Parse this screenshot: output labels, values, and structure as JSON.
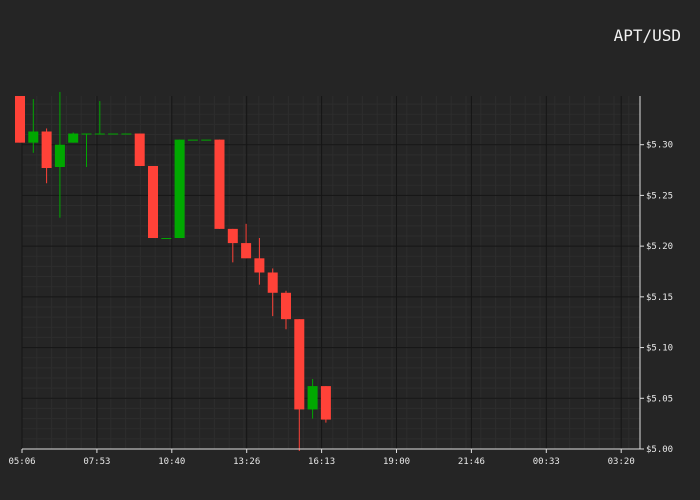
{
  "chart_data": {
    "type": "candlestick",
    "title": "APT/USD",
    "xlabel": "",
    "ylabel": "",
    "x_tick_labels": [
      "05:06",
      "07:53",
      "10:40",
      "13:26",
      "16:13",
      "19:00",
      "21:46",
      "00:33",
      "03:20"
    ],
    "y_ticks": [
      5.0,
      5.05,
      5.1,
      5.15,
      5.2,
      5.25,
      5.3
    ],
    "y_tick_labels": [
      "$5.00",
      "$5.05",
      "$5.10",
      "$5.15",
      "$5.20",
      "$5.25",
      "$5.30"
    ],
    "ylim": [
      5.0,
      5.348
    ],
    "grid": true,
    "up_color": "#00a800",
    "down_color": "#ff4238",
    "candles": [
      {
        "open": 5.348,
        "high": 5.348,
        "low": 5.302,
        "close": 5.302
      },
      {
        "open": 5.302,
        "high": 5.345,
        "low": 5.292,
        "close": 5.313
      },
      {
        "open": 5.313,
        "high": 5.316,
        "low": 5.262,
        "close": 5.277
      },
      {
        "open": 5.278,
        "high": 5.352,
        "low": 5.228,
        "close": 5.3
      },
      {
        "open": 5.302,
        "high": 5.312,
        "low": 5.302,
        "close": 5.311
      },
      {
        "open": 5.311,
        "high": 5.311,
        "low": 5.278,
        "close": 5.311
      },
      {
        "open": 5.311,
        "high": 5.343,
        "low": 5.311,
        "close": 5.311
      },
      {
        "open": 5.311,
        "high": 5.311,
        "low": 5.311,
        "close": 5.311
      },
      {
        "open": 5.311,
        "high": 5.311,
        "low": 5.311,
        "close": 5.311
      },
      {
        "open": 5.311,
        "high": 5.311,
        "low": 5.279,
        "close": 5.279
      },
      {
        "open": 5.279,
        "high": 5.279,
        "low": 5.208,
        "close": 5.208
      },
      {
        "open": 5.208,
        "high": 5.208,
        "low": 5.208,
        "close": 5.208
      },
      {
        "open": 5.208,
        "high": 5.305,
        "low": 5.208,
        "close": 5.305
      },
      {
        "open": 5.305,
        "high": 5.305,
        "low": 5.305,
        "close": 5.305
      },
      {
        "open": 5.305,
        "high": 5.305,
        "low": 5.305,
        "close": 5.305
      },
      {
        "open": 5.305,
        "high": 5.305,
        "low": 5.217,
        "close": 5.217
      },
      {
        "open": 5.217,
        "high": 5.217,
        "low": 5.184,
        "close": 5.203
      },
      {
        "open": 5.203,
        "high": 5.222,
        "low": 5.188,
        "close": 5.188
      },
      {
        "open": 5.188,
        "high": 5.208,
        "low": 5.162,
        "close": 5.174
      },
      {
        "open": 5.174,
        "high": 5.178,
        "low": 5.131,
        "close": 5.154
      },
      {
        "open": 5.154,
        "high": 5.156,
        "low": 5.118,
        "close": 5.128
      },
      {
        "open": 5.128,
        "high": 5.128,
        "low": 4.998,
        "close": 5.039
      },
      {
        "open": 5.039,
        "high": 5.069,
        "low": 5.03,
        "close": 5.062
      },
      {
        "open": 5.062,
        "high": 5.062,
        "low": 5.026,
        "close": 5.029
      }
    ]
  }
}
